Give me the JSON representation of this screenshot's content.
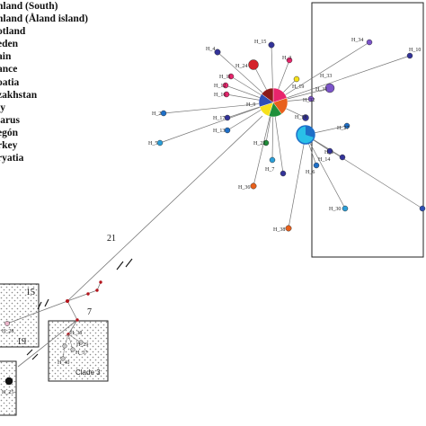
{
  "legend": [
    "nland (South)",
    "nland (Åland island)",
    "otland",
    "eden",
    "ain",
    "ance",
    "oatia",
    "zakhstan",
    "ly",
    "larus",
    "egón",
    "rkey",
    "ryatia"
  ],
  "mutation_counts": {
    "a": "21",
    "b": "15",
    "c": "7",
    "d": "19"
  },
  "clade_label": "Clade 3",
  "haplotypes": {
    "h4": "H_4",
    "h15": "H_15",
    "h3": "H_3",
    "h24": "H_24",
    "h11": "H_11",
    "h12": "H_12",
    "h16": "H_16",
    "h19": "H_19",
    "h9": "H_9",
    "h17": "H_17",
    "h2": "H_2",
    "h13": "H_13",
    "h5": "H_5",
    "h18": "H_18",
    "h22": "H_22",
    "h33": "H_33",
    "h34": "H_34",
    "h10": "H_10",
    "h31": "H_31",
    "h32": "H_32",
    "h27": "H_27",
    "h7": "H_7",
    "h1": "H_1",
    "h14": "H_14",
    "h6": "H_6",
    "h36": "H_36",
    "h30": "H_30",
    "h38": "H_38",
    "h29": "H_29",
    "h37": "H_37",
    "h40": "H_40",
    "h28": "H_28",
    "h39": "H_39",
    "h25": "H_25"
  },
  "colors": {
    "finland_south": "#e8246c",
    "finland_aland": "#2e4fb5",
    "scotland": "#f6e11b",
    "sweden": "#1f8f3a",
    "spain": "#e8601c",
    "france": "#8b1a1a",
    "croatia": "#1e6fc8",
    "kazakhstan": "#6fa8dc",
    "italy": "#29c0e8",
    "belarus": "#7b54c9",
    "oregon": "#2b9fd9",
    "turkey": "#d4232b",
    "buryatia": "#333399",
    "median_vector": "#b5141c"
  }
}
